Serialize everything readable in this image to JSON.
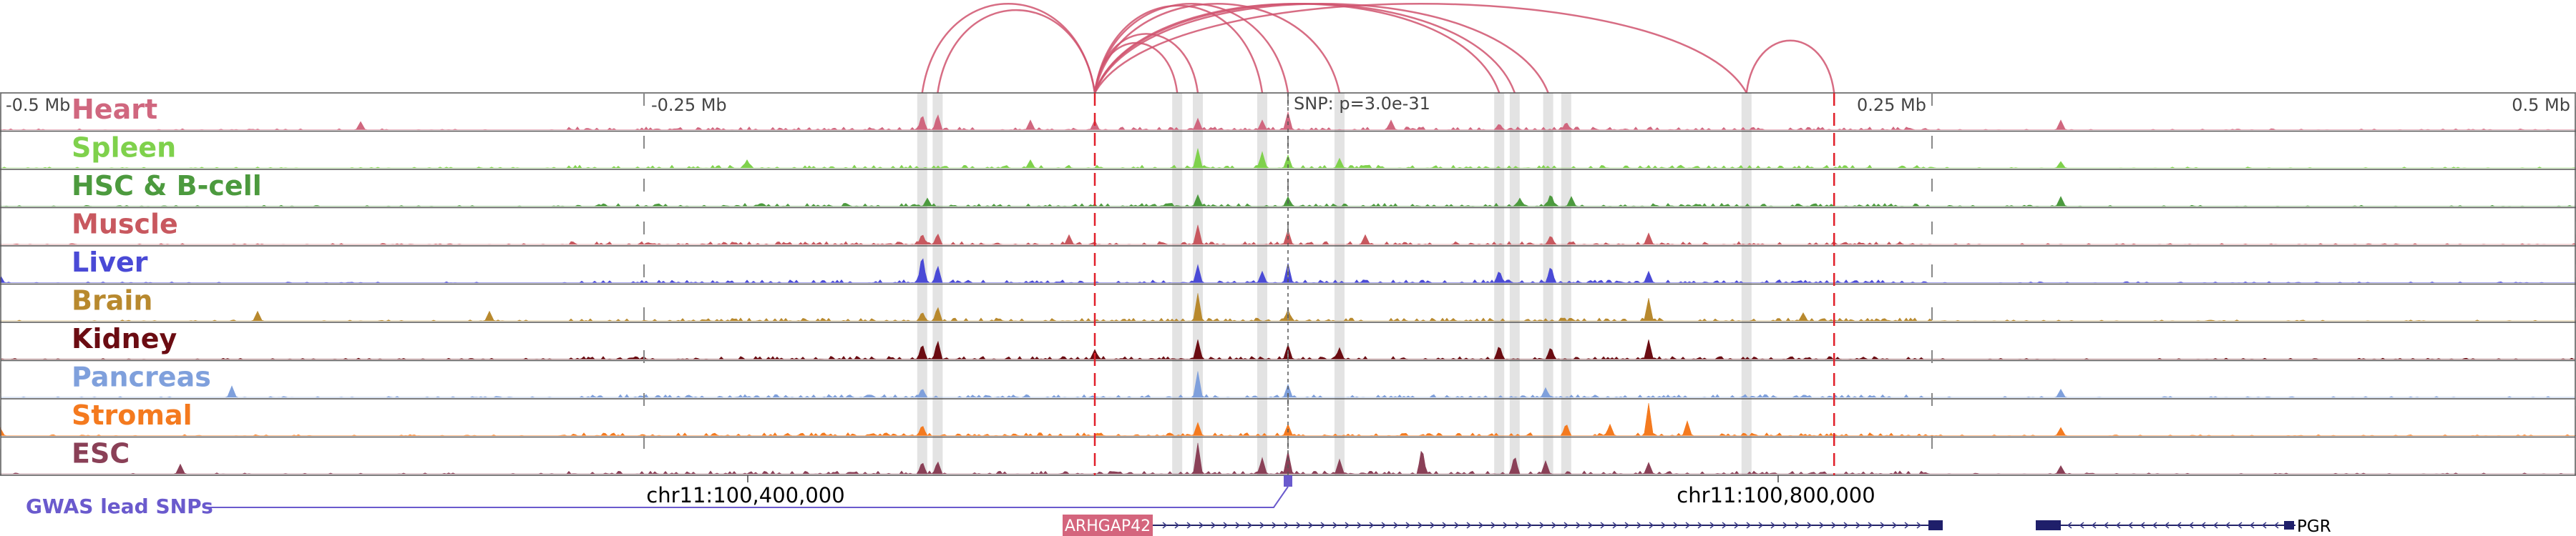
{
  "chart_data": {
    "type": "area",
    "title": "",
    "axis": {
      "ticks": [
        "-0.5 Mb",
        "-0.25 Mb",
        "0.25 Mb",
        "0.5 Mb"
      ],
      "tick_values_mb": [
        -0.5,
        -0.25,
        0.25,
        0.5
      ],
      "range_mb": [
        -0.5,
        0.5
      ]
    },
    "snp_label": "SNP: p=3.0e-31",
    "coordinates": [
      {
        "label": "chr11:100,400,000",
        "pos_mb": -0.25
      },
      {
        "label": "chr11:100,800,000",
        "pos_mb": 0.15
      }
    ],
    "gwas_label": "GWAS lead SNPs",
    "genes": [
      {
        "name": "ARHGAP42",
        "start_mb": -0.09,
        "end_mb": 0.24,
        "strand": "+",
        "label_box": true
      },
      {
        "name": "PGR",
        "start_mb": 0.285,
        "end_mb": 0.385,
        "strand": "-",
        "label_box": false
      }
    ],
    "red_lines_mb": [
      -0.075,
      0.212
    ],
    "grey_highlights_mb": [
      -0.142,
      -0.136,
      -0.043,
      -0.035,
      -0.01,
      0.02,
      0.082,
      0.088,
      0.101,
      0.178,
      0.108
    ],
    "snp_pos_mb": 0.0,
    "loops": [
      {
        "from": -0.142,
        "to": -0.075
      },
      {
        "from": -0.136,
        "to": -0.075
      },
      {
        "from": -0.075,
        "to": -0.043
      },
      {
        "from": -0.075,
        "to": -0.035
      },
      {
        "from": -0.075,
        "to": -0.01
      },
      {
        "from": -0.075,
        "to": 0.0
      },
      {
        "from": -0.075,
        "to": 0.02
      },
      {
        "from": -0.075,
        "to": 0.082
      },
      {
        "from": -0.075,
        "to": 0.088
      },
      {
        "from": -0.075,
        "to": 0.101
      },
      {
        "from": -0.075,
        "to": 0.178
      },
      {
        "from": 0.178,
        "to": 0.212
      }
    ],
    "tracks": [
      {
        "name": "Heart",
        "color": "#d0677f",
        "peaks": [
          [
            -0.142,
            0.5
          ],
          [
            -0.136,
            0.5
          ],
          [
            -0.075,
            0.3
          ],
          [
            -0.035,
            0.35
          ],
          [
            0.0,
            0.55
          ],
          [
            -0.01,
            0.3
          ],
          [
            0.082,
            0.2
          ],
          [
            0.108,
            0.25
          ],
          [
            0.3,
            0.3
          ],
          [
            -0.36,
            0.25
          ],
          [
            -0.1,
            0.3
          ],
          [
            0.04,
            0.3
          ]
        ]
      },
      {
        "name": "Spleen",
        "color": "#7fd14c",
        "peaks": [
          [
            -0.035,
            0.6
          ],
          [
            -0.01,
            0.5
          ],
          [
            0.0,
            0.4
          ],
          [
            -0.21,
            0.25
          ],
          [
            0.02,
            0.3
          ],
          [
            0.3,
            0.2
          ],
          [
            -0.1,
            0.25
          ]
        ]
      },
      {
        "name": "HSC & B-cell",
        "color": "#4c9a3e",
        "peaks": [
          [
            -0.035,
            0.35
          ],
          [
            0.0,
            0.3
          ],
          [
            0.102,
            0.4
          ],
          [
            0.3,
            0.3
          ],
          [
            0.11,
            0.3
          ],
          [
            -0.14,
            0.25
          ],
          [
            0.09,
            0.25
          ]
        ]
      },
      {
        "name": "Muscle",
        "color": "#c8585f",
        "peaks": [
          [
            -0.035,
            0.6
          ],
          [
            0.0,
            0.45
          ],
          [
            -0.142,
            0.35
          ],
          [
            -0.136,
            0.35
          ],
          [
            0.14,
            0.35
          ],
          [
            0.102,
            0.3
          ],
          [
            -0.085,
            0.3
          ],
          [
            0.03,
            0.3
          ]
        ]
      },
      {
        "name": "Liver",
        "color": "#4a4ad6",
        "peaks": [
          [
            -0.142,
            0.9
          ],
          [
            -0.136,
            0.55
          ],
          [
            -0.035,
            0.55
          ],
          [
            0.0,
            0.6
          ],
          [
            0.102,
            0.55
          ],
          [
            0.082,
            0.4
          ],
          [
            -0.01,
            0.35
          ],
          [
            0.14,
            0.35
          ],
          [
            -0.5,
            0.25
          ]
        ]
      },
      {
        "name": "Brain",
        "color": "#b8892e",
        "peaks": [
          [
            -0.035,
            0.85
          ],
          [
            -0.136,
            0.45
          ],
          [
            0.14,
            0.7
          ],
          [
            -0.142,
            0.3
          ],
          [
            -0.31,
            0.3
          ],
          [
            -0.4,
            0.3
          ],
          [
            0.0,
            0.35
          ],
          [
            0.2,
            0.25
          ]
        ]
      },
      {
        "name": "Kidney",
        "color": "#6b0c12",
        "peaks": [
          [
            -0.035,
            0.6
          ],
          [
            -0.136,
            0.6
          ],
          [
            -0.142,
            0.5
          ],
          [
            0.14,
            0.6
          ],
          [
            0.0,
            0.45
          ],
          [
            0.082,
            0.45
          ],
          [
            0.102,
            0.4
          ],
          [
            0.02,
            0.35
          ],
          [
            -0.075,
            0.3
          ]
        ]
      },
      {
        "name": "Pancreas",
        "color": "#7fa0dc",
        "peaks": [
          [
            -0.035,
            0.8
          ],
          [
            -0.41,
            0.35
          ],
          [
            0.0,
            0.4
          ],
          [
            -0.142,
            0.3
          ],
          [
            0.1,
            0.3
          ],
          [
            0.3,
            0.25
          ]
        ]
      },
      {
        "name": "Stromal",
        "color": "#f47a1f",
        "peaks": [
          [
            0.14,
            1.0
          ],
          [
            0.155,
            0.45
          ],
          [
            0.108,
            0.4
          ],
          [
            0.125,
            0.35
          ],
          [
            -0.035,
            0.4
          ],
          [
            0.0,
            0.35
          ],
          [
            -0.142,
            0.35
          ],
          [
            -0.5,
            0.25
          ],
          [
            0.3,
            0.25
          ]
        ]
      },
      {
        "name": "ESC",
        "color": "#8a4057",
        "peaks": [
          [
            -0.035,
            0.95
          ],
          [
            0.052,
            0.85
          ],
          [
            0.088,
            0.6
          ],
          [
            0.0,
            0.7
          ],
          [
            -0.01,
            0.5
          ],
          [
            0.02,
            0.45
          ],
          [
            -0.142,
            0.4
          ],
          [
            -0.136,
            0.4
          ],
          [
            0.1,
            0.4
          ],
          [
            0.14,
            0.35
          ],
          [
            -0.43,
            0.3
          ],
          [
            0.3,
            0.25
          ]
        ]
      }
    ]
  }
}
